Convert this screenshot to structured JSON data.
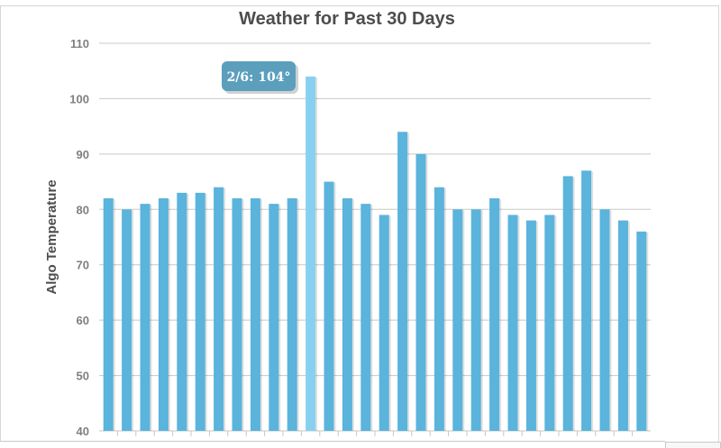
{
  "chart_data": {
    "type": "bar",
    "title": "Weather for Past 30 Days",
    "xlabel": "",
    "ylabel": "Algo Temperature",
    "ylim": [
      40,
      110
    ],
    "yticks": [
      40,
      50,
      60,
      70,
      80,
      90,
      100,
      110
    ],
    "grid": true,
    "values": [
      82,
      80,
      81,
      82,
      83,
      83,
      84,
      82,
      82,
      81,
      82,
      104,
      85,
      82,
      81,
      79,
      94,
      90,
      84,
      80,
      80,
      82,
      79,
      78,
      79,
      86,
      87,
      80,
      78,
      76
    ],
    "highlighted_index": 11,
    "tooltip": "2/6: 104°",
    "colors": {
      "bar": "#5ab4dc",
      "bar_highlight": "#88d0f0",
      "tooltip_bg": "#5b9fbd",
      "grid": "#c8c8c8"
    }
  }
}
